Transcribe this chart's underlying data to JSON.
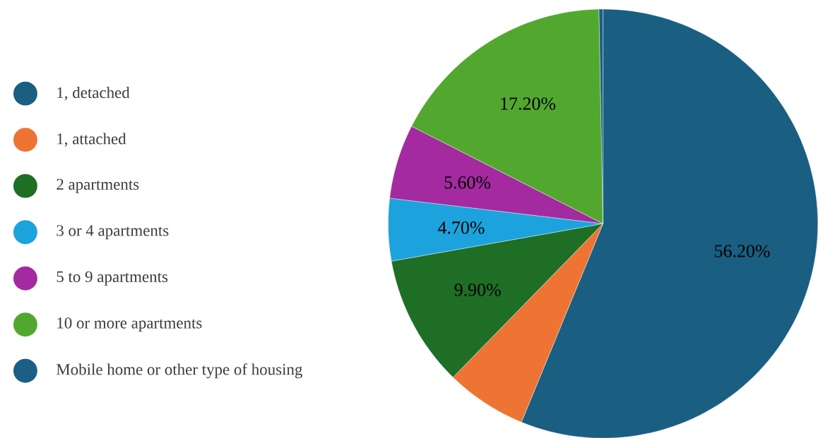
{
  "chart_data": {
    "type": "pie",
    "categories": [
      "1, detached",
      "1, attached",
      "2 apartments",
      "3 or 4 apartments",
      "5 to 9 apartments",
      "10 or more apartments",
      "Mobile home or other type of housing"
    ],
    "values": [
      56.2,
      6.1,
      9.9,
      4.7,
      5.6,
      17.2,
      0.3
    ],
    "colors": [
      "#1a5e82",
      "#ee7433",
      "#1e6e26",
      "#1ca3dd",
      "#a32a9f",
      "#52a82e",
      "#1b5f86"
    ],
    "value_labels": [
      "56.20%",
      null,
      "9.90%",
      "4.70%",
      "5.60%",
      "17.20%",
      null
    ],
    "legend": "left"
  }
}
